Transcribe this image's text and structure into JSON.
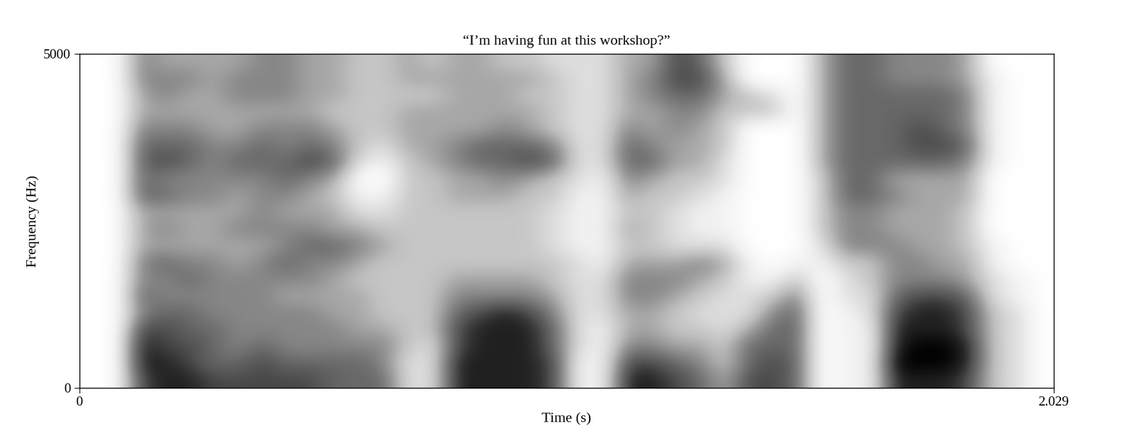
{
  "chart_data": {
    "type": "spectrogram",
    "title": "“I’m having fun at this workshop?”",
    "x_label": "Time (s)",
    "y_label": "Frequency (Hz)",
    "xlim": [
      0,
      2.029
    ],
    "ylim": [
      0,
      5000
    ],
    "xticks": [
      0,
      2.029
    ],
    "yticks": [
      0,
      5000
    ],
    "grid": false,
    "cells": [
      [
        0,
        0,
        0,
        0,
        0,
        0,
        0,
        0,
        0,
        0,
        0,
        0,
        0,
        0,
        0,
        0,
        0,
        0,
        0,
        0
      ],
      [
        0,
        0,
        0,
        0,
        0,
        0,
        0,
        0,
        0,
        0,
        0,
        0,
        0,
        0,
        0,
        0,
        0,
        0,
        0,
        0
      ],
      [
        7,
        8,
        8,
        7,
        5,
        6,
        5,
        5,
        4,
        4,
        4,
        6,
        6,
        6,
        6,
        5,
        4,
        4,
        5,
        5
      ],
      [
        8,
        8,
        7,
        7,
        6,
        5,
        5,
        6,
        4,
        5,
        4,
        6,
        5,
        7,
        6,
        5,
        4,
        5,
        5,
        4
      ],
      [
        8,
        7,
        7,
        6,
        6,
        5,
        6,
        5,
        4,
        4,
        4,
        5,
        5,
        6,
        6,
        5,
        4,
        4,
        5,
        4
      ],
      [
        7,
        6,
        6,
        6,
        5,
        5,
        5,
        5,
        4,
        4,
        4,
        5,
        5,
        5,
        5,
        4,
        4,
        4,
        4,
        4
      ],
      [
        7,
        6,
        5,
        5,
        5,
        5,
        5,
        4,
        4,
        5,
        4,
        4,
        5,
        6,
        5,
        4,
        4,
        5,
        5,
        4
      ],
      [
        7,
        7,
        6,
        5,
        5,
        5,
        5,
        5,
        4,
        5,
        5,
        5,
        5,
        6,
        6,
        5,
        4,
        5,
        5,
        5
      ],
      [
        7,
        6,
        5,
        5,
        5,
        4,
        5,
        6,
        5,
        5,
        4,
        5,
        6,
        6,
        5,
        5,
        4,
        5,
        5,
        5
      ],
      [
        7,
        6,
        5,
        5,
        5,
        4,
        5,
        5,
        6,
        5,
        4,
        4,
        5,
        7,
        6,
        5,
        4,
        4,
        4,
        4
      ],
      [
        6,
        6,
        5,
        5,
        4,
        4,
        4,
        5,
        6,
        4,
        4,
        3,
        4,
        6,
        5,
        4,
        3,
        4,
        4,
        4
      ],
      [
        6,
        6,
        5,
        4,
        4,
        4,
        3,
        4,
        5,
        4,
        2,
        1,
        0,
        2,
        3,
        3,
        3,
        3,
        3,
        3
      ],
      [
        6,
        5,
        5,
        4,
        3,
        3,
        3,
        3,
        4,
        3,
        2,
        1,
        0,
        1,
        2,
        3,
        3,
        3,
        3,
        3
      ],
      [
        2,
        2,
        3,
        3,
        3,
        3,
        3,
        3,
        3,
        3,
        3,
        3,
        3,
        3,
        4,
        4,
        4,
        3,
        4,
        4
      ],
      [
        2,
        2,
        2,
        3,
        3,
        3,
        3,
        3,
        3,
        3,
        3,
        3,
        3,
        4,
        4,
        4,
        4,
        3,
        4,
        3
      ],
      [
        8,
        8,
        7,
        7,
        6,
        5,
        4,
        3,
        3,
        3,
        3,
        4,
        4,
        5,
        5,
        4,
        4,
        4,
        4,
        4
      ],
      [
        8,
        8,
        8,
        8,
        7,
        5,
        4,
        3,
        3,
        3,
        3,
        4,
        4,
        6,
        6,
        4,
        4,
        4,
        4,
        4
      ],
      [
        8,
        8,
        8,
        8,
        8,
        5,
        4,
        3,
        3,
        3,
        3,
        4,
        5,
        6,
        6,
        5,
        4,
        4,
        4,
        3
      ],
      [
        8,
        8,
        8,
        8,
        7,
        5,
        4,
        3,
        3,
        3,
        3,
        3,
        4,
        7,
        6,
        4,
        4,
        3,
        4,
        3
      ],
      [
        7,
        7,
        6,
        6,
        5,
        4,
        3,
        3,
        2,
        2,
        2,
        3,
        3,
        6,
        5,
        3,
        3,
        3,
        3,
        2
      ],
      [
        1,
        1,
        2,
        2,
        2,
        2,
        2,
        2,
        1,
        1,
        1,
        1,
        2,
        2,
        2,
        2,
        2,
        2,
        2,
        2
      ],
      [
        1,
        1,
        1,
        1,
        2,
        2,
        2,
        1,
        1,
        1,
        1,
        1,
        1,
        2,
        2,
        2,
        2,
        2,
        2,
        2
      ],
      [
        8,
        7,
        5,
        4,
        4,
        5,
        5,
        4,
        3,
        4,
        3,
        4,
        5,
        6,
        6,
        5,
        4,
        4,
        4,
        4
      ],
      [
        8,
        7,
        5,
        4,
        4,
        5,
        5,
        4,
        3,
        3,
        3,
        3,
        4,
        6,
        5,
        4,
        4,
        5,
        5,
        4
      ],
      [
        7,
        6,
        4,
        3,
        3,
        4,
        5,
        4,
        2,
        2,
        2,
        3,
        3,
        4,
        4,
        5,
        5,
        6,
        7,
        7
      ],
      [
        6,
        5,
        4,
        3,
        2,
        3,
        4,
        5,
        2,
        1,
        1,
        2,
        3,
        4,
        4,
        4,
        5,
        6,
        7,
        6
      ],
      [
        4,
        3,
        3,
        2,
        2,
        2,
        3,
        4,
        2,
        1,
        1,
        1,
        2,
        2,
        3,
        3,
        3,
        4,
        4,
        3
      ],
      [
        7,
        6,
        6,
        4,
        2,
        2,
        1,
        1,
        0,
        0,
        0,
        0,
        0,
        0,
        0,
        0,
        3,
        3,
        0,
        0
      ],
      [
        7,
        7,
        6,
        6,
        5,
        3,
        1,
        0,
        0,
        0,
        0,
        0,
        0,
        0,
        0,
        0,
        3,
        2,
        0,
        0
      ],
      [
        6,
        6,
        6,
        6,
        6,
        5,
        3,
        1,
        0,
        0,
        0,
        0,
        0,
        0,
        0,
        0,
        0,
        0,
        0,
        0
      ],
      [
        0,
        0,
        0,
        0,
        0,
        0,
        0,
        1,
        2,
        3,
        3,
        3,
        3,
        4,
        4,
        4,
        4,
        4,
        4,
        4
      ],
      [
        1,
        1,
        1,
        1,
        1,
        2,
        2,
        3,
        5,
        5,
        5,
        6,
        6,
        6,
        6,
        6,
        6,
        6,
        6,
        6
      ],
      [
        1,
        1,
        1,
        1,
        2,
        2,
        3,
        3,
        5,
        5,
        5,
        6,
        6,
        6,
        6,
        6,
        6,
        6,
        6,
        6
      ],
      [
        8,
        9,
        8,
        8,
        7,
        6,
        5,
        5,
        5,
        4,
        4,
        5,
        4,
        6,
        6,
        6,
        6,
        6,
        5,
        5
      ],
      [
        8,
        9,
        9,
        8,
        8,
        7,
        5,
        5,
        4,
        4,
        4,
        4,
        4,
        6,
        7,
        7,
        6,
        6,
        5,
        5
      ],
      [
        8,
        9,
        9,
        8,
        8,
        7,
        5,
        4,
        4,
        4,
        4,
        4,
        4,
        6,
        7,
        6,
        6,
        6,
        5,
        5
      ],
      [
        7,
        8,
        8,
        7,
        7,
        6,
        4,
        4,
        3,
        3,
        3,
        4,
        4,
        5,
        6,
        5,
        5,
        5,
        4,
        4
      ],
      [
        3,
        3,
        3,
        3,
        3,
        2,
        2,
        1,
        1,
        0,
        0,
        0,
        0,
        1,
        1,
        1,
        1,
        1,
        1,
        0
      ],
      [
        2,
        2,
        2,
        2,
        2,
        1,
        1,
        0,
        0,
        0,
        0,
        0,
        0,
        0,
        0,
        0,
        0,
        0,
        0,
        0
      ],
      [
        0,
        0,
        0,
        0,
        0,
        0,
        0,
        0,
        0,
        0,
        0,
        0,
        0,
        0,
        0,
        0,
        0,
        0,
        0,
        0
      ]
    ]
  }
}
